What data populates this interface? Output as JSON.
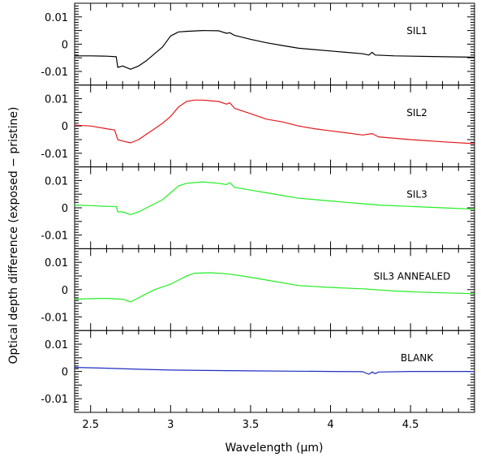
{
  "figure": {
    "ylabel": "Optical depth difference (exposed − pristine)",
    "xlabel": "Wavelength (μm)"
  },
  "chart_data": {
    "type": "line",
    "xlabel": "Wavelength (μm)",
    "ylabel": "Optical depth difference (exposed − pristine)",
    "xlim": [
      2.4,
      4.9
    ],
    "xticks": [
      2.5,
      3,
      3.5,
      4,
      4.5
    ],
    "xtick_labels": [
      "2.5",
      "3",
      "3.5",
      "4",
      "4.5"
    ],
    "ylim": [
      -0.015,
      0.015
    ],
    "yticks": [
      0.01,
      0,
      -0.01
    ],
    "ytick_labels": [
      "0.01",
      "0",
      "-0.01"
    ],
    "grid": false,
    "panels": [
      {
        "label": "SIL1",
        "color": "#000000",
        "points": [
          [
            2.4,
            -0.0043
          ],
          [
            2.5,
            -0.0043
          ],
          [
            2.6,
            -0.0044
          ],
          [
            2.66,
            -0.0046
          ],
          [
            2.67,
            -0.0085
          ],
          [
            2.7,
            -0.008
          ],
          [
            2.75,
            -0.0092
          ],
          [
            2.8,
            -0.008
          ],
          [
            2.85,
            -0.006
          ],
          [
            2.9,
            -0.0035
          ],
          [
            2.95,
            -0.001
          ],
          [
            3.0,
            0.003
          ],
          [
            3.05,
            0.0045
          ],
          [
            3.1,
            0.0047
          ],
          [
            3.2,
            0.005
          ],
          [
            3.3,
            0.0049
          ],
          [
            3.35,
            0.004
          ],
          [
            3.37,
            0.0042
          ],
          [
            3.4,
            0.0032
          ],
          [
            3.5,
            0.0018
          ],
          [
            3.6,
            0.0005
          ],
          [
            3.7,
            -0.0005
          ],
          [
            3.8,
            -0.0015
          ],
          [
            3.9,
            -0.002
          ],
          [
            4.0,
            -0.0025
          ],
          [
            4.1,
            -0.003
          ],
          [
            4.2,
            -0.0035
          ],
          [
            4.24,
            -0.004
          ],
          [
            4.26,
            -0.003
          ],
          [
            4.28,
            -0.004
          ],
          [
            4.4,
            -0.0043
          ],
          [
            4.6,
            -0.0045
          ],
          [
            4.9,
            -0.0048
          ]
        ]
      },
      {
        "label": "SIL2",
        "color": "#e31a1c",
        "points": [
          [
            2.4,
            0.0003
          ],
          [
            2.5,
            0.0
          ],
          [
            2.6,
            -0.001
          ],
          [
            2.65,
            -0.0015
          ],
          [
            2.67,
            -0.005
          ],
          [
            2.7,
            -0.0055
          ],
          [
            2.75,
            -0.0062
          ],
          [
            2.8,
            -0.005
          ],
          [
            2.85,
            -0.003
          ],
          [
            2.9,
            -0.001
          ],
          [
            2.95,
            0.001
          ],
          [
            3.0,
            0.0035
          ],
          [
            3.05,
            0.007
          ],
          [
            3.1,
            0.009
          ],
          [
            3.15,
            0.0095
          ],
          [
            3.2,
            0.0095
          ],
          [
            3.3,
            0.009
          ],
          [
            3.35,
            0.008
          ],
          [
            3.37,
            0.0085
          ],
          [
            3.4,
            0.0065
          ],
          [
            3.5,
            0.0045
          ],
          [
            3.6,
            0.0025
          ],
          [
            3.7,
            0.0015
          ],
          [
            3.8,
            0.0
          ],
          [
            3.9,
            -0.001
          ],
          [
            4.0,
            -0.0018
          ],
          [
            4.1,
            -0.0025
          ],
          [
            4.2,
            -0.0033
          ],
          [
            4.26,
            -0.0028
          ],
          [
            4.3,
            -0.004
          ],
          [
            4.5,
            -0.005
          ],
          [
            4.7,
            -0.0058
          ],
          [
            4.9,
            -0.0065
          ]
        ]
      },
      {
        "label": "SIL3",
        "color": "#22ee22",
        "points": [
          [
            2.4,
            0.001
          ],
          [
            2.5,
            0.0008
          ],
          [
            2.6,
            0.0005
          ],
          [
            2.66,
            0.0005
          ],
          [
            2.67,
            -0.0015
          ],
          [
            2.7,
            -0.0015
          ],
          [
            2.75,
            -0.0025
          ],
          [
            2.8,
            -0.0015
          ],
          [
            2.85,
            0.0
          ],
          [
            2.9,
            0.0015
          ],
          [
            2.95,
            0.003
          ],
          [
            3.0,
            0.0055
          ],
          [
            3.05,
            0.008
          ],
          [
            3.1,
            0.009
          ],
          [
            3.2,
            0.0095
          ],
          [
            3.3,
            0.009
          ],
          [
            3.35,
            0.0085
          ],
          [
            3.37,
            0.0092
          ],
          [
            3.4,
            0.0075
          ],
          [
            3.5,
            0.0065
          ],
          [
            3.6,
            0.0055
          ],
          [
            3.7,
            0.0045
          ],
          [
            3.8,
            0.0035
          ],
          [
            3.9,
            0.003
          ],
          [
            4.0,
            0.0025
          ],
          [
            4.1,
            0.002
          ],
          [
            4.2,
            0.0015
          ],
          [
            4.3,
            0.001
          ],
          [
            4.5,
            0.0005
          ],
          [
            4.7,
            0.0
          ],
          [
            4.9,
            -0.0005
          ]
        ]
      },
      {
        "label": "SIL3 ANNEALED",
        "color": "#22ee22",
        "points": [
          [
            2.4,
            -0.0035
          ],
          [
            2.5,
            -0.0033
          ],
          [
            2.6,
            -0.0032
          ],
          [
            2.7,
            -0.0035
          ],
          [
            2.75,
            -0.0045
          ],
          [
            2.8,
            -0.003
          ],
          [
            2.85,
            -0.0015
          ],
          [
            2.9,
            0.0
          ],
          [
            3.0,
            0.002
          ],
          [
            3.05,
            0.0035
          ],
          [
            3.1,
            0.005
          ],
          [
            3.15,
            0.006
          ],
          [
            3.25,
            0.0062
          ],
          [
            3.35,
            0.0058
          ],
          [
            3.45,
            0.005
          ],
          [
            3.6,
            0.0035
          ],
          [
            3.8,
            0.0015
          ],
          [
            4.0,
            0.0008
          ],
          [
            4.2,
            0.0003
          ],
          [
            4.4,
            -0.0005
          ],
          [
            4.6,
            -0.001
          ],
          [
            4.9,
            -0.0015
          ]
        ]
      },
      {
        "label": "BLANK",
        "color": "#1f2fbf",
        "points": [
          [
            2.4,
            0.0015
          ],
          [
            2.6,
            0.0012
          ],
          [
            2.8,
            0.0008
          ],
          [
            3.0,
            0.0005
          ],
          [
            3.5,
            0.0002
          ],
          [
            4.0,
            0.0
          ],
          [
            4.2,
            -0.0001
          ],
          [
            4.24,
            -0.001
          ],
          [
            4.26,
            -0.0002
          ],
          [
            4.28,
            -0.0008
          ],
          [
            4.3,
            -0.0002
          ],
          [
            4.5,
            0.0
          ],
          [
            4.9,
            0.0
          ]
        ]
      }
    ]
  }
}
